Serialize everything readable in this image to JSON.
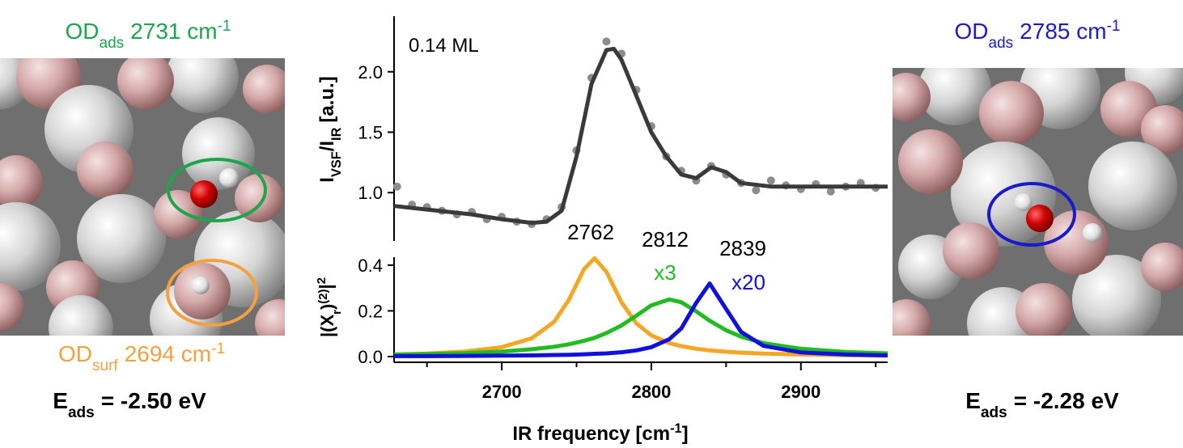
{
  "panels": [
    {
      "label": {
        "main": "OD",
        "sub": "ads",
        "value": "2731 cm",
        "sup": "-1"
      },
      "label2": {
        "main": "OD",
        "sub": "surf",
        "value": "2694 cm",
        "sup": "-1"
      },
      "energy": {
        "main": "E",
        "sub": "ads",
        "value": "= -2.50 eV"
      }
    },
    {
      "label": {
        "main": "OD",
        "sub": "ads",
        "value": "2785 cm",
        "sup": "-1"
      },
      "energy": {
        "main": "E",
        "sub": "ads",
        "value": "= -2.28 eV"
      }
    }
  ],
  "chart_data": [
    {
      "type": "scatter",
      "annotation": "0.14 ML",
      "y_label": {
        "main": "I",
        "sub1": "VSF",
        "mid": "/I",
        "sub2": "IR",
        "tail": "[a.u.]"
      },
      "xlim": [
        2628,
        2958
      ],
      "ylim": [
        0.6,
        2.46
      ],
      "yticks": [
        {
          "value": 1,
          "label": "1.0"
        },
        {
          "value": 1.5,
          "label": "1.5"
        },
        {
          "value": 2,
          "label": "2.0"
        }
      ],
      "x": [
        2630,
        2640,
        2650,
        2660,
        2670,
        2680,
        2690,
        2700,
        2710,
        2720,
        2730,
        2740,
        2750,
        2760,
        2770,
        2780,
        2790,
        2800,
        2810,
        2820,
        2830,
        2840,
        2850,
        2860,
        2870,
        2880,
        2890,
        2900,
        2910,
        2920,
        2930,
        2940,
        2950
      ],
      "values": [
        1.05,
        0.9,
        0.88,
        0.85,
        0.82,
        0.84,
        0.78,
        0.8,
        0.76,
        0.74,
        0.78,
        0.88,
        1.35,
        1.95,
        2.25,
        2.15,
        1.85,
        1.55,
        1.3,
        1.18,
        1.1,
        1.22,
        1.15,
        1.08,
        1.02,
        1.1,
        1.06,
        1.03,
        1.07,
        1.01,
        1.05,
        1.08,
        1.04
      ],
      "color": "#8c8c8c",
      "fit": {
        "x": [
          2628,
          2650,
          2680,
          2700,
          2720,
          2730,
          2740,
          2750,
          2760,
          2770,
          2775,
          2780,
          2790,
          2800,
          2810,
          2820,
          2830,
          2840,
          2850,
          2860,
          2880,
          2900,
          2958
        ],
        "values": [
          0.89,
          0.86,
          0.82,
          0.78,
          0.75,
          0.76,
          0.85,
          1.3,
          1.9,
          2.18,
          2.19,
          2.1,
          1.8,
          1.5,
          1.3,
          1.15,
          1.12,
          1.21,
          1.17,
          1.08,
          1.05,
          1.05,
          1.05
        ],
        "color": "#3a3a3a"
      }
    },
    {
      "type": "line",
      "x_label": {
        "main": "IR frequency [cm",
        "sup": "-1",
        "tail": "]"
      },
      "y_label": {
        "main": "|(X",
        "sub": "r",
        "mid": ")",
        "sup1": "(2)",
        "mid2": "|",
        "sup2": "2"
      },
      "xlim": [
        2628,
        2958
      ],
      "ylim": [
        -0.025,
        0.435
      ],
      "xticks": [
        2700,
        2800,
        2900
      ],
      "xminorticks": [
        2650,
        2750,
        2850,
        2950
      ],
      "yticks": [
        {
          "value": 0,
          "label": "0.0"
        },
        {
          "value": 0.2,
          "label": "0.2"
        },
        {
          "value": 0.4,
          "label": "0.4"
        }
      ],
      "x": [
        2628,
        2650,
        2675,
        2700,
        2720,
        2735,
        2745,
        2755,
        2762,
        2770,
        2780,
        2790,
        2800,
        2812,
        2820,
        2830,
        2839,
        2850,
        2860,
        2875,
        2900,
        2930,
        2958
      ],
      "series": [
        {
          "color": "#f5a623",
          "peak_label": "2762",
          "values": [
            0.009,
            0.013,
            0.022,
            0.041,
            0.08,
            0.152,
            0.25,
            0.383,
            0.43,
            0.371,
            0.238,
            0.145,
            0.093,
            0.059,
            0.046,
            0.034,
            0.027,
            0.021,
            0.017,
            0.013,
            0.009,
            0.006,
            0.004
          ]
        },
        {
          "color": "#22bb22",
          "peak_label": "2812",
          "scale_label": "x3",
          "values": [
            0.009,
            0.011,
            0.015,
            0.022,
            0.032,
            0.043,
            0.054,
            0.069,
            0.082,
            0.103,
            0.136,
            0.179,
            0.224,
            0.25,
            0.238,
            0.198,
            0.157,
            0.115,
            0.087,
            0.059,
            0.034,
            0.02,
            0.014
          ]
        },
        {
          "color": "#1010dd",
          "peak_label": "2839",
          "scale_label": "x20",
          "values": [
            0.002,
            0.002,
            0.003,
            0.004,
            0.005,
            0.007,
            0.008,
            0.01,
            0.012,
            0.014,
            0.019,
            0.027,
            0.041,
            0.076,
            0.123,
            0.235,
            0.32,
            0.208,
            0.108,
            0.047,
            0.018,
            0.009,
            0.005
          ]
        }
      ]
    }
  ]
}
